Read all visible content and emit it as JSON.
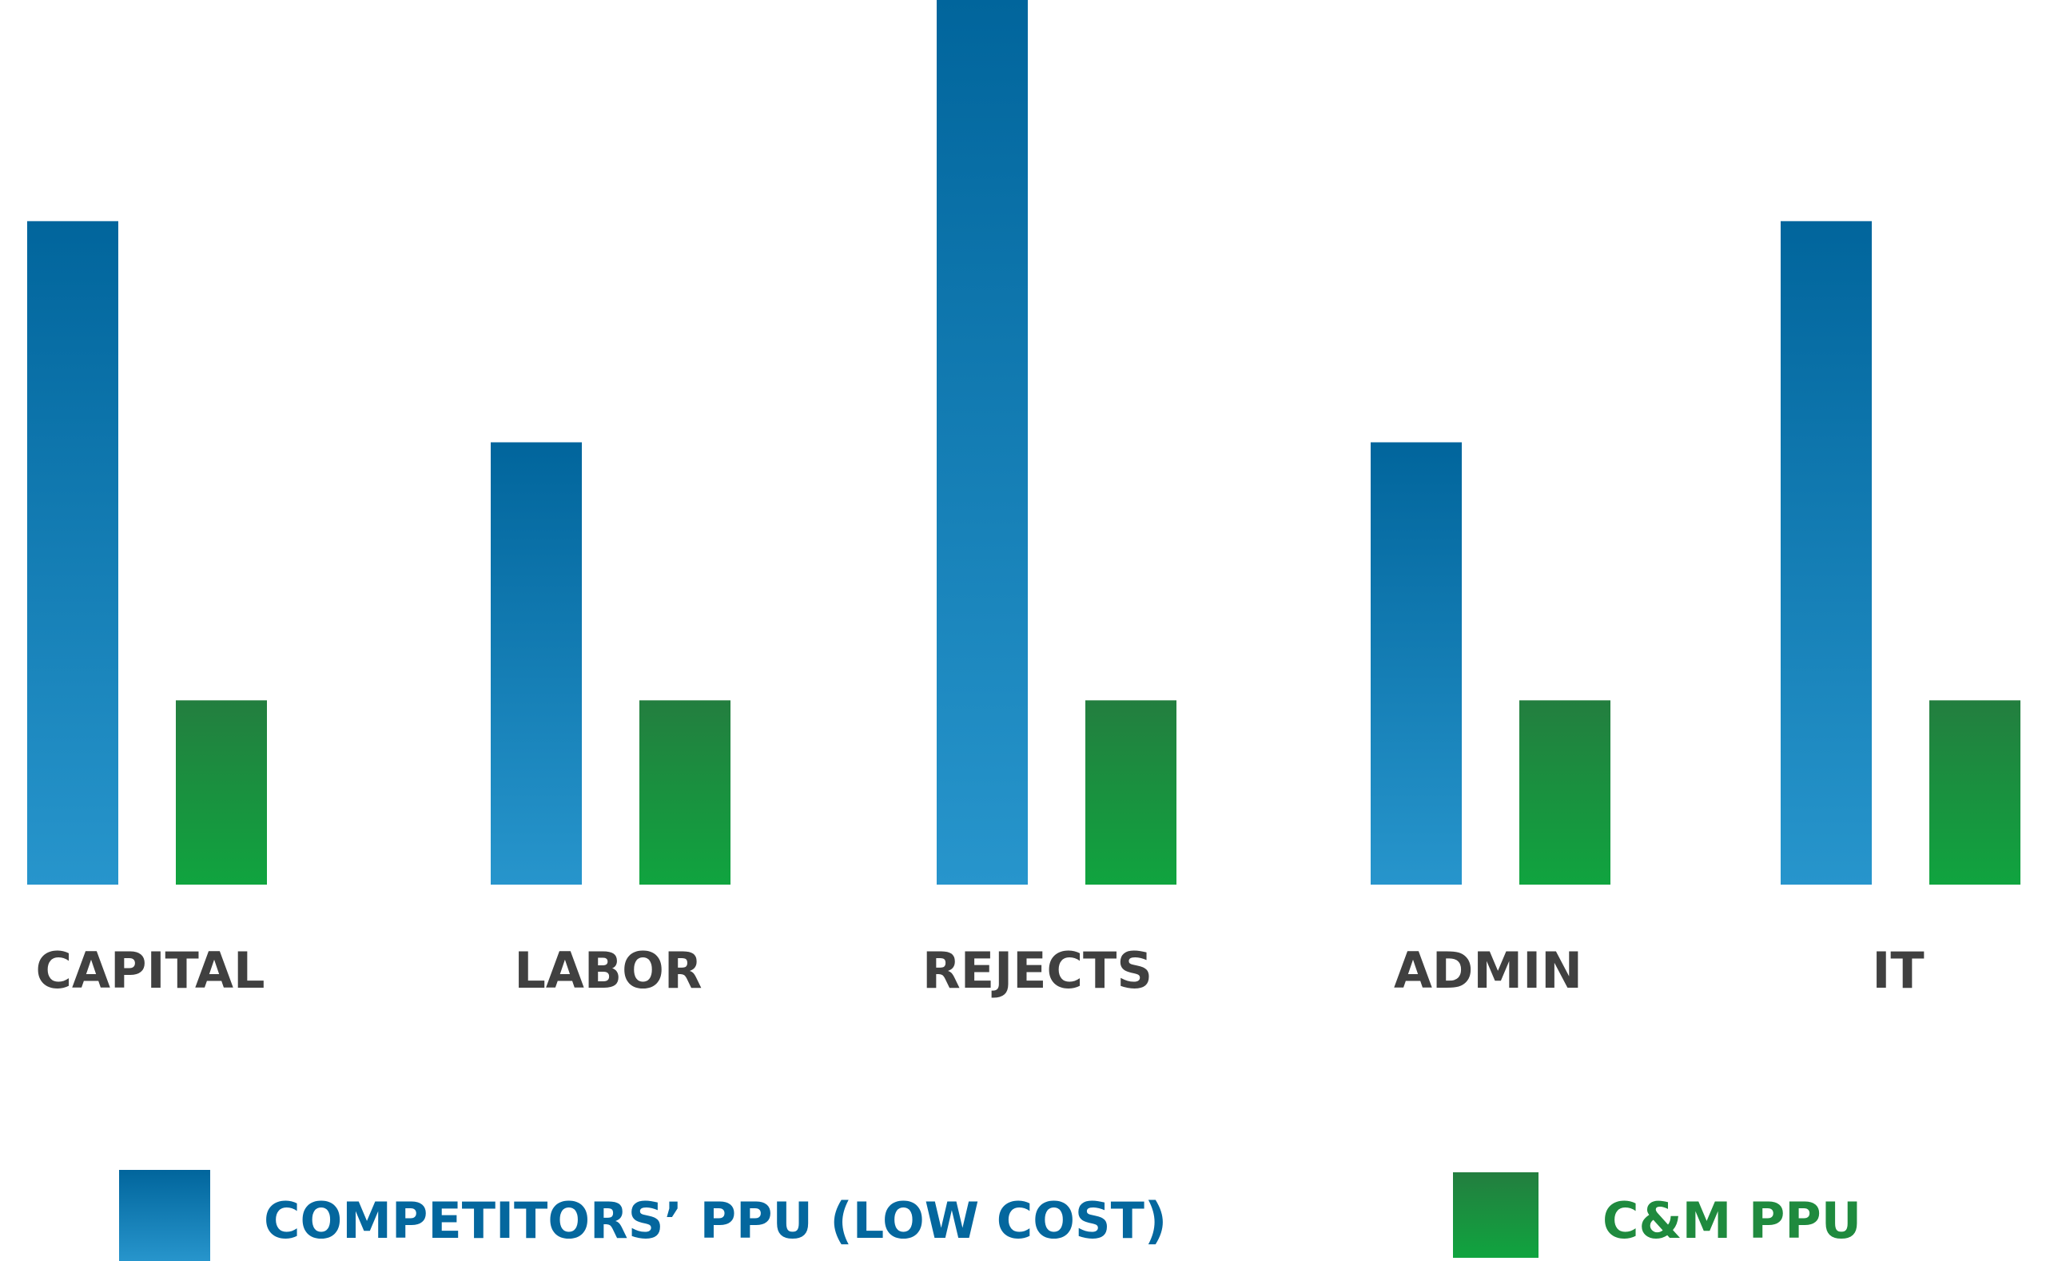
{
  "chart_data": {
    "type": "bar",
    "categories": [
      "CAPITAL",
      "LABOR",
      "REJECTS",
      "ADMIN",
      "IT"
    ],
    "series": [
      {
        "name": "COMPETITORS’ PPU (LOW COST)",
        "values": [
          3.6,
          2.4,
          4.8,
          2.4,
          3.6
        ],
        "color_top": "#01659C",
        "color_bottom": "#2795CC"
      },
      {
        "name": "C&M PPU",
        "values": [
          1.0,
          1.0,
          1.0,
          1.0,
          1.0
        ],
        "color_top": "#237E3F",
        "color_bottom": "#10A43F"
      }
    ],
    "ylim": [
      0,
      4.8
    ],
    "grid": false,
    "legend": "bottom",
    "label_color": "#404040",
    "legend_colors": [
      "#04679E",
      "#1F8A3E"
    ]
  }
}
